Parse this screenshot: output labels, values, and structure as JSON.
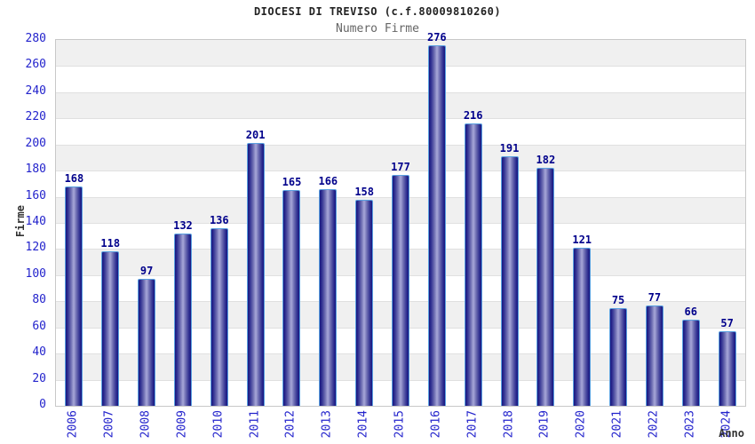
{
  "chart_data": {
    "type": "bar",
    "title": "DIOCESI DI TREVISO (c.f.80009810260)",
    "subtitle": "Numero Firme",
    "xlabel": "Anno",
    "ylabel": "Firme",
    "categories": [
      "2006",
      "2007",
      "2008",
      "2009",
      "2010",
      "2011",
      "2012",
      "2013",
      "2014",
      "2015",
      "2016",
      "2017",
      "2018",
      "2019",
      "2020",
      "2021",
      "2022",
      "2023",
      "2024"
    ],
    "values": [
      168,
      118,
      97,
      132,
      136,
      201,
      165,
      166,
      158,
      177,
      276,
      216,
      191,
      182,
      121,
      75,
      77,
      66,
      57
    ],
    "ylim": [
      0,
      280
    ],
    "ytick_step": 20,
    "grid": true,
    "legend": false,
    "band_fill": "alternating horizontal stripes",
    "colors": {
      "tick_label": "#2323cc",
      "value_label": "#00008b",
      "title": "#222222",
      "subtitle": "#666666",
      "axis_label": "#333333",
      "band": "#f0f0f0",
      "grid": "#e0e0e0",
      "plot_border": "#c8c8c8",
      "bar_dark": "#161680",
      "bar_mid": "#6a6ab0",
      "bar_light": "#a8a8d8",
      "bar_outline": "#5aa0e0",
      "background": "#ffffff"
    }
  }
}
